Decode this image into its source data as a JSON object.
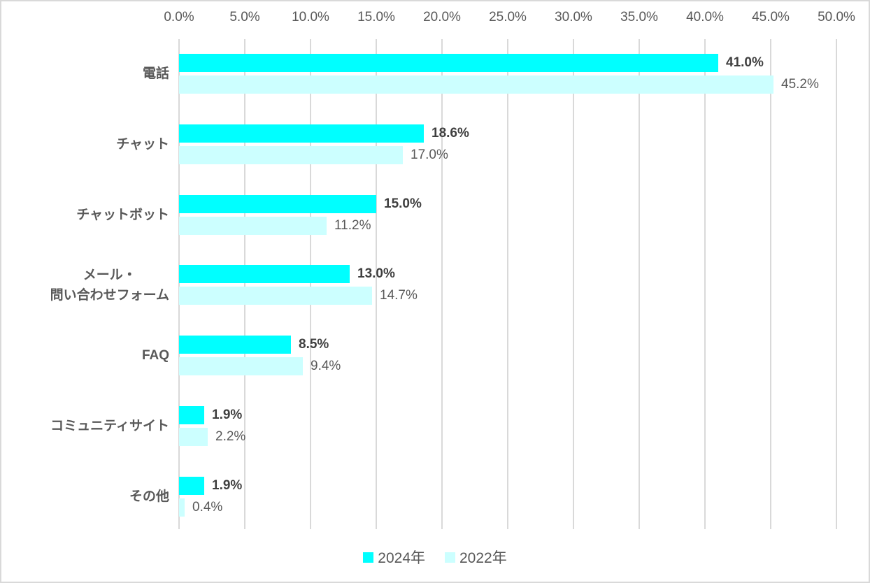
{
  "chart_data": {
    "type": "bar",
    "orientation": "horizontal",
    "title": "",
    "categories": [
      "電話",
      "チャット",
      "チャットボット",
      "メール・\n問い合わせフォーム",
      "FAQ",
      "コミュニティサイト",
      "その他"
    ],
    "series": [
      {
        "name": "2024年",
        "color": "#00FFFF",
        "values": [
          41.0,
          18.6,
          15.0,
          13.0,
          8.5,
          1.9,
          1.9
        ],
        "data_labels": [
          "41.0%",
          "18.6%",
          "15.0%",
          "13.0%",
          "8.5%",
          "1.9%",
          "1.9%"
        ]
      },
      {
        "name": "2022年",
        "color": "#CCFFFF",
        "values": [
          45.2,
          17.0,
          11.2,
          14.7,
          9.4,
          2.2,
          0.4
        ],
        "data_labels": [
          "45.2%",
          "17.0%",
          "11.2%",
          "14.7%",
          "9.4%",
          "2.2%",
          "0.4%"
        ]
      }
    ],
    "x_axis": {
      "min": 0,
      "max": 50,
      "tick_interval": 5,
      "position": "top",
      "tick_labels": [
        "0.0%",
        "5.0%",
        "10.0%",
        "15.0%",
        "20.0%",
        "25.0%",
        "30.0%",
        "35.0%",
        "40.0%",
        "45.0%",
        "50.0%"
      ]
    },
    "grid": true,
    "legend": {
      "position": "bottom",
      "entries": [
        "2024年",
        "2022年"
      ]
    },
    "style_colors": {
      "gridline": "#D9D9D9",
      "axis_text": "#595959",
      "category_text": "#595959",
      "series1_label_text": "#3F3F3F",
      "series2_label_text": "#595959"
    }
  }
}
